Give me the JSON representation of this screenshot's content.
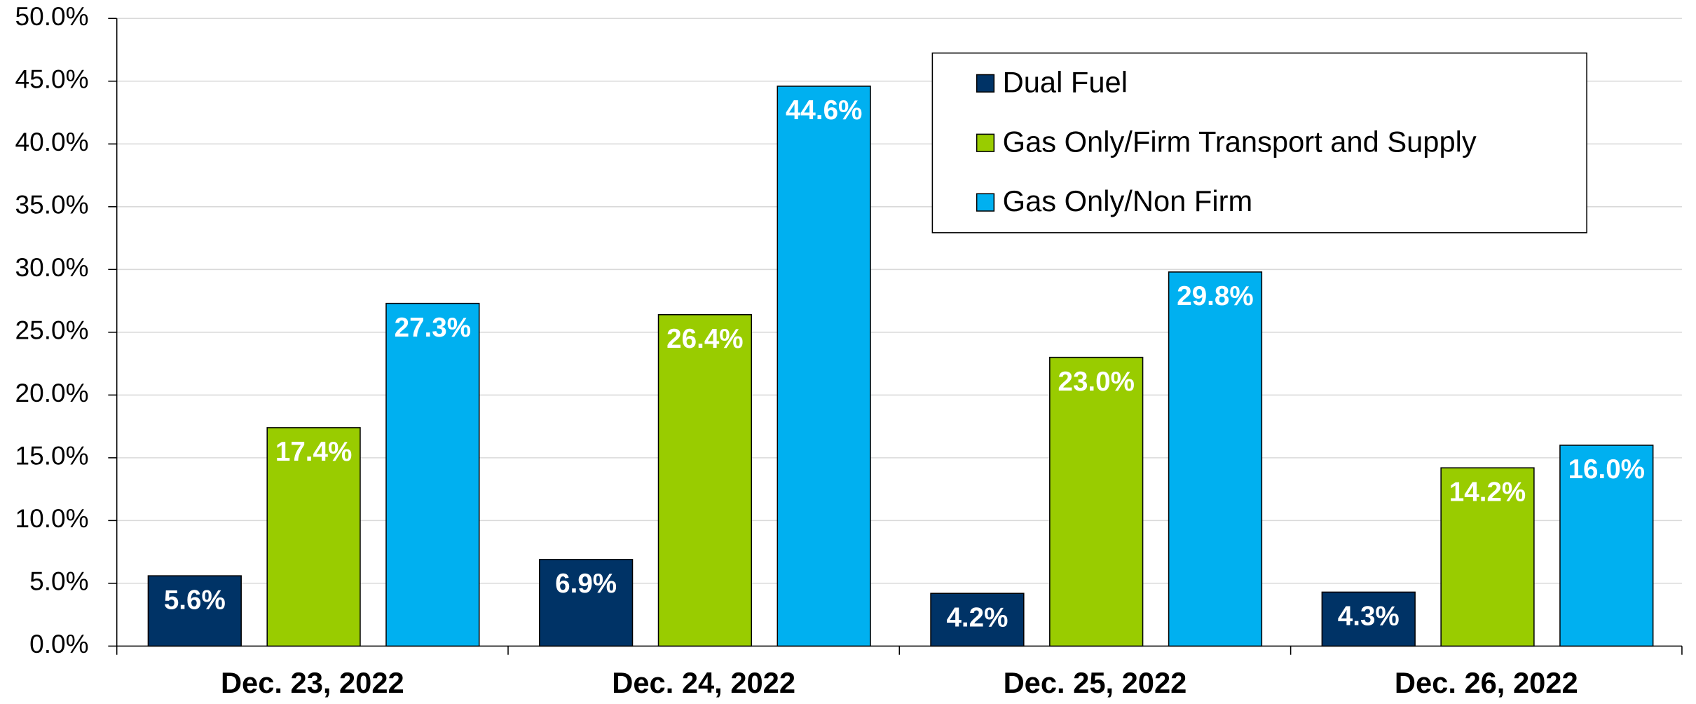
{
  "chart_data": {
    "type": "bar",
    "categories": [
      "Dec. 23, 2022",
      "Dec. 24, 2022",
      "Dec. 25, 2022",
      "Dec. 26, 2022"
    ],
    "series": [
      {
        "name": "Dual Fuel",
        "color": "#003366",
        "values": [
          5.6,
          6.9,
          4.2,
          4.3
        ],
        "value_labels": [
          "5.6%",
          "6.9%",
          "4.2%",
          "4.3%"
        ]
      },
      {
        "name": "Gas Only/Firm Transport and Supply",
        "color": "#99cc00",
        "values": [
          17.4,
          26.4,
          23.0,
          14.2
        ],
        "value_labels": [
          "17.4%",
          "26.4%",
          "23.0%",
          "14.2%"
        ]
      },
      {
        "name": "Gas Only/Non Firm",
        "color": "#00b0f0",
        "values": [
          27.3,
          44.6,
          29.8,
          16.0
        ],
        "value_labels": [
          "27.3%",
          "44.6%",
          "29.8%",
          "16.0%"
        ]
      }
    ],
    "ylim": [
      0,
      50
    ],
    "yticks": [
      {
        "value": 0,
        "label": "0.0%"
      },
      {
        "value": 5,
        "label": "5.0%"
      },
      {
        "value": 10,
        "label": "10.0%"
      },
      {
        "value": 15,
        "label": "15.0%"
      },
      {
        "value": 20,
        "label": "20.0%"
      },
      {
        "value": 25,
        "label": "25.0%"
      },
      {
        "value": 30,
        "label": "30.0%"
      },
      {
        "value": 35,
        "label": "35.0%"
      },
      {
        "value": 40,
        "label": "40.0%"
      },
      {
        "value": 45,
        "label": "45.0%"
      },
      {
        "value": 50,
        "label": "50.0%"
      }
    ],
    "grid": true,
    "legend": "top-right"
  }
}
